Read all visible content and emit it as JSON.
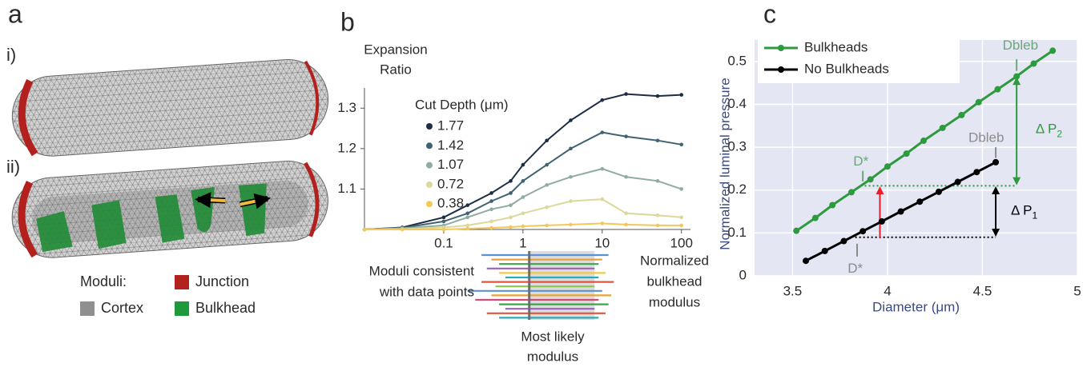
{
  "panels": [
    "a",
    "b",
    "c"
  ],
  "panel_a": {
    "rows": [
      "i)",
      "ii)"
    ],
    "legend_title": "Moduli:",
    "legend": [
      {
        "name": "Junction",
        "color": "#b3211f"
      },
      {
        "name": "Cortex",
        "color": "#8f8f8f"
      },
      {
        "name": "Bulkhead",
        "color": "#1f9a3a"
      }
    ]
  },
  "chart_data": [
    {
      "type": "line",
      "xlog": true,
      "y_label": [
        "Expansion",
        "Ratio"
      ],
      "x_label": [
        "Normalized",
        "bulkhead",
        "modulus"
      ],
      "legend_title": "Cut Depth (μm)",
      "x": [
        0.01,
        0.03,
        0.1,
        0.2,
        0.4,
        0.7,
        1,
        2,
        4,
        10,
        20,
        50,
        100
      ],
      "xlim": [
        0.01,
        130
      ],
      "xticks": [
        0.1,
        1,
        10,
        100
      ],
      "ylim": [
        1.0,
        1.35
      ],
      "yticks": [
        1.1,
        1.2,
        1.3
      ],
      "series": [
        {
          "name": "1.77",
          "color": "#1c2d44",
          "values": [
            1.0,
            1.005,
            1.03,
            1.06,
            1.09,
            1.12,
            1.16,
            1.22,
            1.27,
            1.32,
            1.335,
            1.33,
            1.333
          ]
        },
        {
          "name": "1.42",
          "color": "#3f6373",
          "values": [
            1.0,
            1.004,
            1.02,
            1.04,
            1.07,
            1.09,
            1.12,
            1.16,
            1.2,
            1.24,
            1.23,
            1.22,
            1.21
          ]
        },
        {
          "name": "1.07",
          "color": "#8fac9f",
          "values": [
            1.0,
            1.003,
            1.01,
            1.03,
            1.05,
            1.06,
            1.08,
            1.11,
            1.13,
            1.15,
            1.13,
            1.12,
            1.1
          ]
        },
        {
          "name": "0.72",
          "color": "#dcd89a",
          "values": [
            1.0,
            1.001,
            1.005,
            1.01,
            1.02,
            1.03,
            1.04,
            1.055,
            1.07,
            1.075,
            1.04,
            1.035,
            1.03
          ]
        },
        {
          "name": "0.38",
          "color": "#f2c85a",
          "values": [
            1.0,
            1.0,
            1.0,
            1.002,
            1.004,
            1.006,
            1.008,
            1.01,
            1.012,
            1.015,
            1.012,
            1.01,
            1.01
          ]
        }
      ],
      "ranges_label": [
        "Moduli consistent",
        "with data points"
      ],
      "ranges": [
        {
          "color": "#5b8fd6",
          "values": [
            0.3,
            12
          ]
        },
        {
          "color": "#e8a23a",
          "values": [
            0.4,
            10
          ]
        },
        {
          "color": "#3aa648",
          "values": [
            0.5,
            9
          ]
        },
        {
          "color": "#9b5fc0",
          "values": [
            0.35,
            8
          ]
        },
        {
          "color": "#f0c84a",
          "values": [
            0.5,
            11
          ]
        },
        {
          "color": "#2fa9b8",
          "values": [
            0.6,
            9
          ]
        },
        {
          "color": "#e5533c",
          "values": [
            0.3,
            14
          ]
        },
        {
          "color": "#8cc84b",
          "values": [
            0.45,
            8
          ]
        },
        {
          "color": "#5b8fd6",
          "values": [
            0.2,
            10
          ]
        },
        {
          "color": "#e8a23a",
          "values": [
            0.4,
            13
          ]
        },
        {
          "color": "#d04b7a",
          "values": [
            0.25,
            9
          ]
        },
        {
          "color": "#3aa648",
          "values": [
            0.5,
            12
          ]
        },
        {
          "color": "#9b5fc0",
          "values": [
            0.6,
            8
          ]
        },
        {
          "color": "#e5533c",
          "values": [
            0.35,
            11
          ]
        },
        {
          "color": "#2fa9b8",
          "values": [
            0.5,
            9
          ]
        }
      ],
      "likely_range": [
        1.2,
        8
      ],
      "most_likely": 1.2,
      "most_likely_label": [
        "Most likely",
        "modulus"
      ]
    },
    {
      "type": "line",
      "xlog": false,
      "grid": true,
      "background": "#e4e6f3",
      "y_label": "Normalized luminal pressure",
      "x_label": "Diameter (μm)",
      "xlim": [
        3.3,
        5.0
      ],
      "xticks": [
        3.5,
        4,
        4.5,
        5
      ],
      "ylim": [
        0,
        0.55
      ],
      "yticks": [
        0,
        0.1,
        0.2,
        0.3,
        0.4,
        0.5
      ],
      "series": [
        {
          "name": "Bulkheads",
          "color": "#2e9a3e",
          "x": [
            3.52,
            3.62,
            3.71,
            3.81,
            3.91,
            4.0,
            4.1,
            4.19,
            4.29,
            4.39,
            4.48,
            4.58,
            4.68,
            4.77,
            4.87
          ],
          "values": [
            0.105,
            0.135,
            0.165,
            0.195,
            0.225,
            0.255,
            0.285,
            0.315,
            0.345,
            0.375,
            0.405,
            0.435,
            0.465,
            0.495,
            0.525
          ]
        },
        {
          "name": "No Bulkheads",
          "color": "#000000",
          "x": [
            3.57,
            3.67,
            3.77,
            3.87,
            3.97,
            4.07,
            4.17,
            4.27,
            4.37,
            4.47,
            4.57
          ],
          "values": [
            0.035,
            0.058,
            0.081,
            0.104,
            0.127,
            0.15,
            0.173,
            0.196,
            0.219,
            0.242,
            0.265
          ]
        }
      ],
      "annotations": [
        {
          "text": "D*",
          "color": "#6aa877"
        },
        {
          "text": "D*",
          "color": "#8c8c8c"
        },
        {
          "text": "Dbleb",
          "color": "#6aa877"
        },
        {
          "text": "Dbleb",
          "color": "#8c8c8c"
        },
        {
          "text": "Δ P",
          "sub": "2",
          "color": "#2e9a3e"
        },
        {
          "text": "Δ P",
          "sub": "1",
          "color": "#000000"
        }
      ]
    }
  ]
}
